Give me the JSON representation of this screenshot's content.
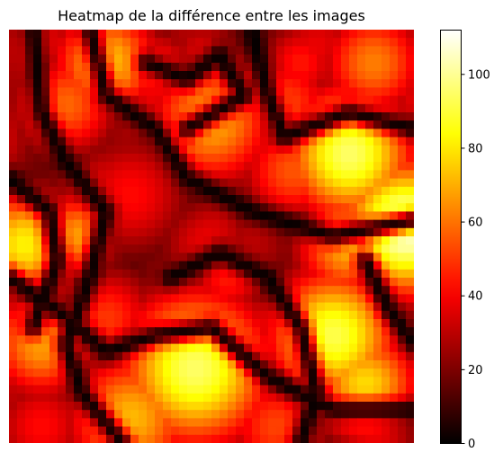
{
  "chart_data": {
    "type": "heatmap",
    "title": "Heatmap de la différence entre les images",
    "colormap": "hot",
    "vmin": 0,
    "vmax": 112,
    "grid": false,
    "colorbar": {
      "ticks": [
        0,
        20,
        40,
        60,
        80,
        100
      ],
      "tick_labels": [
        "0",
        "20",
        "40",
        "60",
        "80",
        "100"
      ],
      "placement": "right"
    },
    "rows": 50,
    "cols": 50,
    "blobs": [
      {
        "x": 12,
        "y": 4,
        "r": 5,
        "v": 75
      },
      {
        "x": 7,
        "y": 9,
        "r": 5,
        "v": 58
      },
      {
        "x": 2,
        "y": 26,
        "r": 5,
        "v": 82
      },
      {
        "x": 15,
        "y": 20,
        "r": 6,
        "v": 42
      },
      {
        "x": 18,
        "y": 5,
        "r": 4,
        "v": 48
      },
      {
        "x": 25,
        "y": 11,
        "r": 6,
        "v": 70
      },
      {
        "x": 34,
        "y": 9,
        "r": 5,
        "v": 52
      },
      {
        "x": 45,
        "y": 4,
        "r": 5,
        "v": 62
      },
      {
        "x": 42,
        "y": 15,
        "r": 6,
        "v": 95
      },
      {
        "x": 35,
        "y": 17,
        "r": 5,
        "v": 55
      },
      {
        "x": 49,
        "y": 24,
        "r": 6,
        "v": 110
      },
      {
        "x": 42,
        "y": 26,
        "r": 5,
        "v": 72
      },
      {
        "x": 40,
        "y": 37,
        "r": 6,
        "v": 92
      },
      {
        "x": 44,
        "y": 43,
        "r": 5,
        "v": 78
      },
      {
        "x": 23,
        "y": 41,
        "r": 7,
        "v": 95
      },
      {
        "x": 15,
        "y": 47,
        "r": 6,
        "v": 72
      },
      {
        "x": 4,
        "y": 38,
        "r": 5,
        "v": 68
      },
      {
        "x": 12,
        "y": 35,
        "r": 5,
        "v": 50
      },
      {
        "x": 30,
        "y": 26,
        "r": 5,
        "v": 30
      },
      {
        "x": 31,
        "y": 36,
        "r": 4,
        "v": 38
      },
      {
        "x": 20,
        "y": 30,
        "r": 5,
        "v": 24
      },
      {
        "x": 27,
        "y": 30,
        "r": 4,
        "v": 45
      },
      {
        "x": 33,
        "y": 48,
        "r": 5,
        "v": 52
      },
      {
        "x": 4,
        "y": 48,
        "r": 5,
        "v": 42
      },
      {
        "x": 8,
        "y": 25,
        "r": 4,
        "v": 68
      },
      {
        "x": 36,
        "y": 4,
        "r": 4,
        "v": 44
      },
      {
        "x": 24,
        "y": 3,
        "r": 4,
        "v": 36
      }
    ],
    "ridges": [
      [
        [
          3,
          0
        ],
        [
          4,
          10
        ],
        [
          7,
          16
        ],
        [
          12,
          22
        ],
        [
          10,
          30
        ],
        [
          7,
          38
        ],
        [
          9,
          44
        ],
        [
          14,
          50
        ]
      ],
      [
        [
          10,
          0
        ],
        [
          12,
          8
        ],
        [
          18,
          12
        ],
        [
          22,
          18
        ],
        [
          30,
          22
        ],
        [
          40,
          25
        ],
        [
          50,
          23
        ]
      ],
      [
        [
          0,
          30
        ],
        [
          6,
          34
        ],
        [
          12,
          39
        ],
        [
          18,
          37
        ],
        [
          25,
          36
        ],
        [
          32,
          42
        ],
        [
          40,
          46
        ],
        [
          50,
          46
        ]
      ],
      [
        [
          30,
          0
        ],
        [
          32,
          8
        ],
        [
          34,
          13
        ],
        [
          42,
          10
        ],
        [
          50,
          12
        ]
      ],
      [
        [
          20,
          30
        ],
        [
          26,
          27
        ],
        [
          32,
          30
        ],
        [
          36,
          36
        ],
        [
          38,
          44
        ],
        [
          36,
          50
        ]
      ],
      [
        [
          17,
          4
        ],
        [
          22,
          6
        ],
        [
          26,
          3
        ],
        [
          29,
          8
        ],
        [
          22,
          12
        ]
      ],
      [
        [
          0,
          18
        ],
        [
          5,
          22
        ],
        [
          6,
          28
        ],
        [
          3,
          36
        ]
      ],
      [
        [
          44,
          28
        ],
        [
          47,
          34
        ],
        [
          50,
          38
        ]
      ]
    ]
  }
}
